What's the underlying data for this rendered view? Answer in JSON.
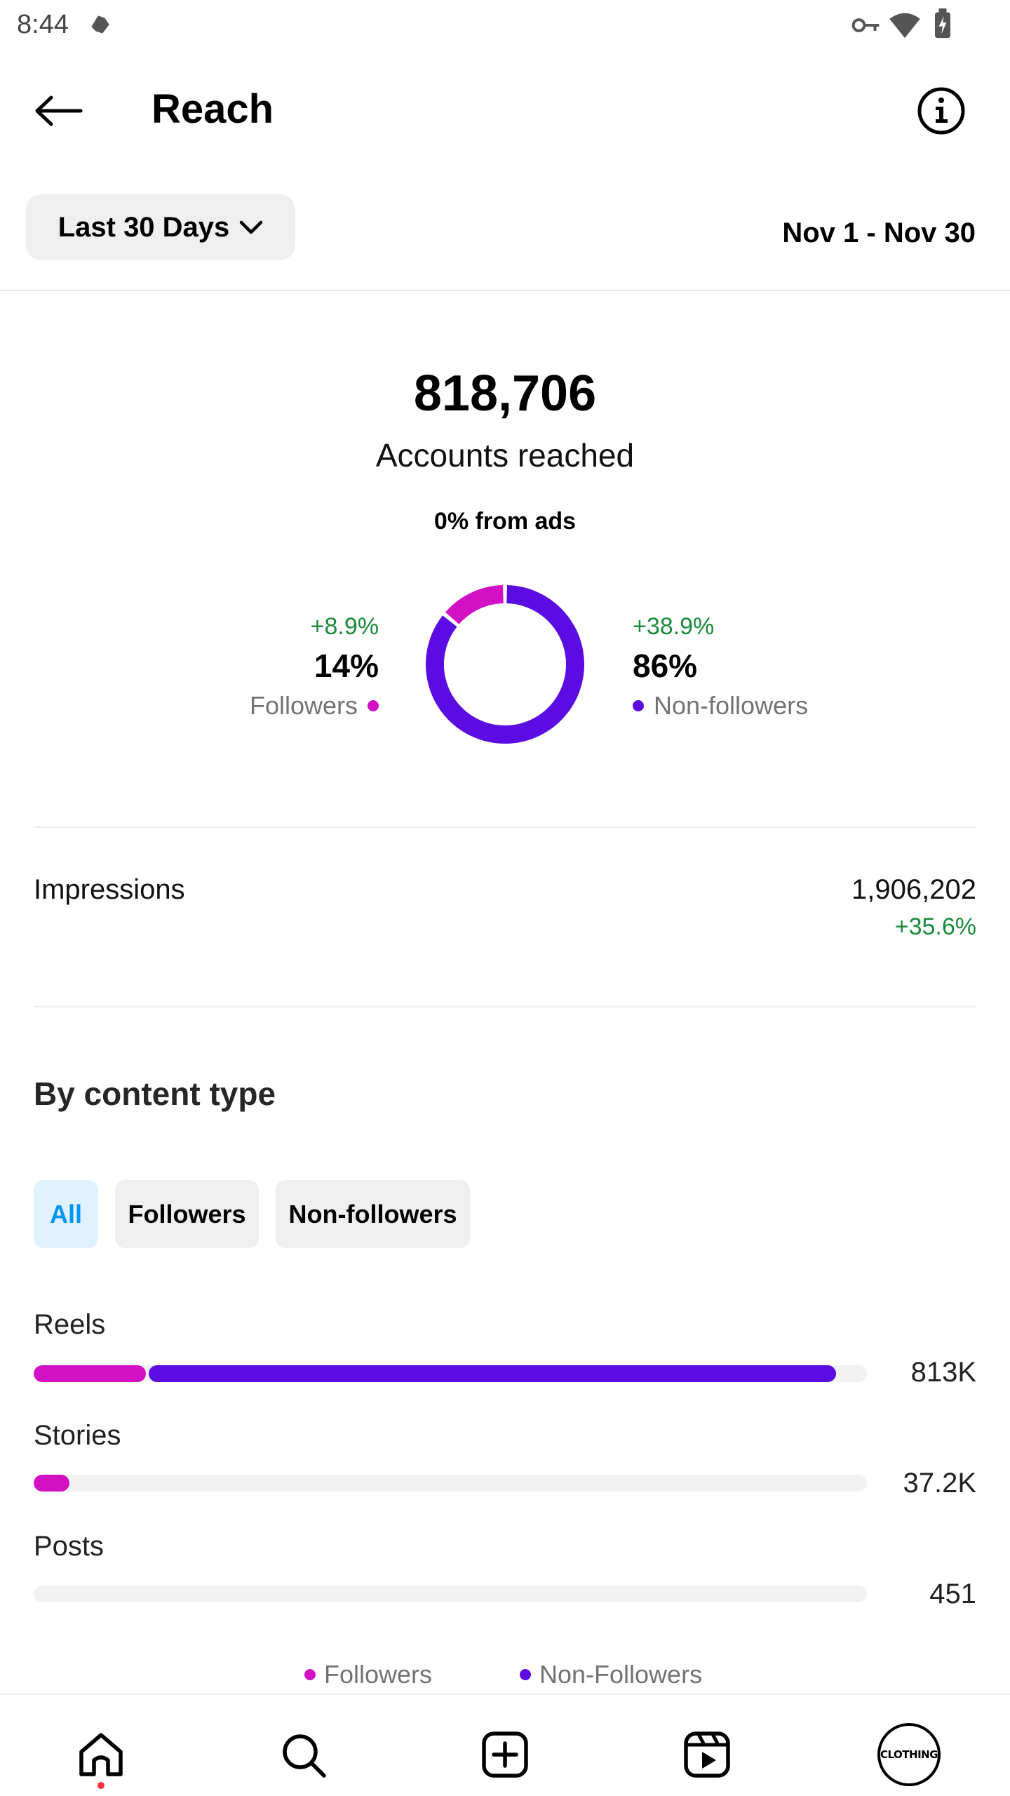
{
  "status_bar": {
    "time": "8:44",
    "icons": [
      "notification-icon",
      "vpn-key-icon",
      "wifi-icon",
      "battery-charging-icon"
    ]
  },
  "header": {
    "title": "Reach",
    "back_icon": "arrow-left-icon",
    "info_icon": "info-icon"
  },
  "date_filter": {
    "selected": "Last 30 Days",
    "range": "Nov 1 - Nov 30"
  },
  "summary": {
    "accounts_reached": "818,706",
    "accounts_label": "Accounts reached",
    "ads_label": "0% from ads"
  },
  "audience": {
    "followers": {
      "change": "+8.9%",
      "percent": "14%",
      "label": "Followers",
      "color": "#d211c4",
      "share": 0.14
    },
    "non_followers": {
      "change": "+38.9%",
      "percent": "86%",
      "label": "Non-followers",
      "color": "#5b0ce3",
      "share": 0.86
    }
  },
  "impressions": {
    "label": "Impressions",
    "value": "1,906,202",
    "change": "+35.6%"
  },
  "content_type": {
    "title": "By content type",
    "filters": [
      "All",
      "Followers",
      "Non-followers"
    ],
    "selected_filter": "All",
    "rows": [
      {
        "label": "Reels",
        "value": "813K",
        "followers_share": 0.135,
        "nonfollowers_share": 0.825
      },
      {
        "label": "Stories",
        "value": "37.2K",
        "followers_share": 0.043,
        "nonfollowers_share": 0
      },
      {
        "label": "Posts",
        "value": "451",
        "followers_share": 0,
        "nonfollowers_share": 0
      }
    ],
    "legend": {
      "followers": "Followers",
      "non_followers": "Non-Followers"
    }
  },
  "chart_data": {
    "type": "bar",
    "categories": [
      "Reels",
      "Stories",
      "Posts"
    ],
    "series": [
      {
        "name": "Followers",
        "values": [
          110000,
          37200,
          0
        ]
      },
      {
        "name": "Non-Followers",
        "values": [
          703000,
          0,
          451
        ]
      }
    ],
    "totals": [
      "813K",
      "37.2K",
      "451"
    ]
  },
  "bottom_nav": {
    "items": [
      "home-icon",
      "search-icon",
      "create-icon",
      "reels-icon",
      "profile-avatar"
    ],
    "avatar_text": "CLOTHING"
  }
}
